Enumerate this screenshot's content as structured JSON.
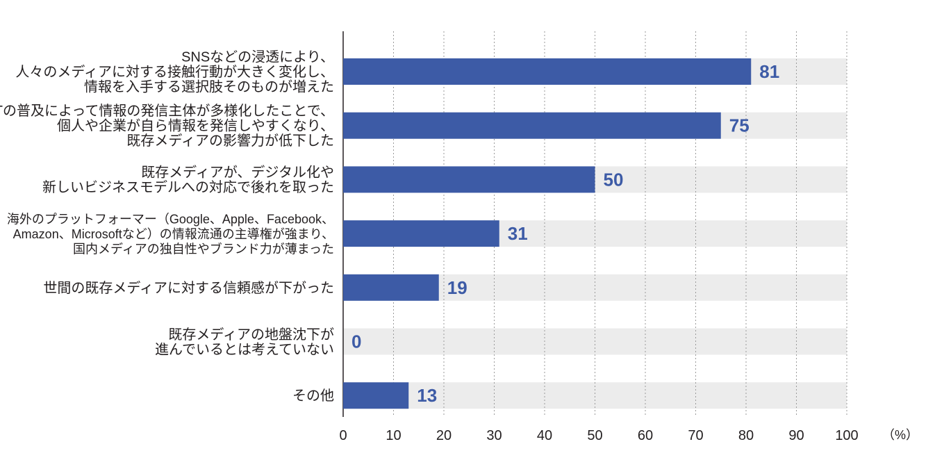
{
  "chart_data": {
    "type": "bar",
    "orientation": "horizontal",
    "categories": [
      [
        "SNSなどの浸透により、",
        "人々のメディアに対する接触行動が大きく変化し、",
        "情報を入手する選択肢そのものが増えた"
      ],
      [
        "ITの普及によって情報の発信主体が多様化したことで、",
        "個人や企業が自ら情報を発信しやすくなり、",
        "既存メディアの影響力が低下した"
      ],
      [
        "既存メディアが、デジタル化や",
        "新しいビジネスモデルへの対応で後れを取った"
      ],
      [
        "海外のプラットフォーマー（Google、Apple、Facebook、",
        "Amazon、Microsoftなど）の情報流通の主導権が強まり、",
        "国内メディアの独自性やブランド力が薄まった"
      ],
      [
        "世間の既存メディアに対する信頼感が下がった"
      ],
      [
        "既存メディアの地盤沈下が",
        "進んでいるとは考えていない"
      ],
      [
        "その他"
      ]
    ],
    "values": [
      81,
      75,
      50,
      31,
      19,
      0,
      13
    ],
    "value_labels": [
      "81",
      "75",
      "50",
      "31",
      "19",
      "0",
      "13"
    ],
    "xlim": [
      0,
      100
    ],
    "x_ticks": [
      "0",
      "10",
      "20",
      "30",
      "40",
      "50",
      "60",
      "70",
      "80",
      "90",
      "100"
    ],
    "unit": "（%）",
    "grid": "vertical dotted",
    "colors": {
      "bar": "#3d5ba6",
      "track": "#ececec",
      "value_text": "#3d5ba6",
      "text": "#231f20",
      "grid": "#9a9a9a"
    }
  }
}
